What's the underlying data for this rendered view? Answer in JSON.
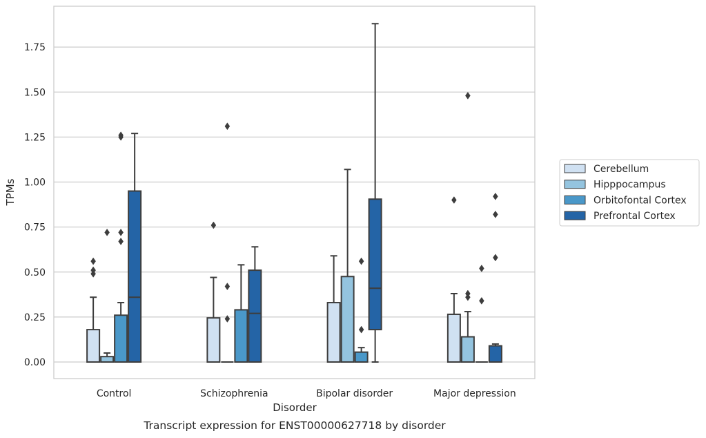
{
  "chart_data": {
    "type": "box",
    "xlabel": "Disorder",
    "ylabel": "TPMs",
    "caption": "Transcript expression for ENST00000627718 by disorder",
    "ylim": [
      -0.09,
      1.97
    ],
    "yticks": [
      "0.00",
      "0.25",
      "0.50",
      "0.75",
      "1.00",
      "1.25",
      "1.50",
      "1.75"
    ],
    "grid": "horizontal",
    "legend_position": "right",
    "categories": [
      "Control",
      "Schizophrenia",
      "Bipolar disorder",
      "Major depression"
    ],
    "series": [
      {
        "name": "Cerebellum",
        "color": "#d0e1f2",
        "boxes": [
          {
            "q1": 0,
            "median": 0,
            "q3": 0.18,
            "whislo": 0,
            "whishi": 0.36,
            "fliers": [
              0.49,
              0.51,
              0.56
            ]
          },
          {
            "q1": 0,
            "median": 0,
            "q3": 0.245,
            "whislo": 0,
            "whishi": 0.47,
            "fliers": [
              0.76
            ]
          },
          {
            "q1": 0,
            "median": 0,
            "q3": 0.33,
            "whislo": 0,
            "whishi": 0.59,
            "fliers": []
          },
          {
            "q1": 0,
            "median": 0,
            "q3": 0.265,
            "whislo": 0,
            "whishi": 0.38,
            "fliers": [
              0.9
            ]
          }
        ]
      },
      {
        "name": "Hipppocampus",
        "color": "#94c4df",
        "boxes": [
          {
            "q1": 0,
            "median": 0,
            "q3": 0.03,
            "whislo": 0,
            "whishi": 0.05,
            "fliers": [
              0.72
            ]
          },
          {
            "q1": 0,
            "median": 0,
            "q3": 0,
            "whislo": 0,
            "whishi": 0,
            "fliers": [
              0.24,
              0.42,
              1.31
            ]
          },
          {
            "q1": 0,
            "median": 0,
            "q3": 0.475,
            "whislo": 0,
            "whishi": 1.07,
            "fliers": []
          },
          {
            "q1": 0,
            "median": 0,
            "q3": 0.14,
            "whislo": 0,
            "whishi": 0.28,
            "fliers": [
              0.36,
              0.38,
              1.48
            ]
          }
        ]
      },
      {
        "name": "Orbitofontal Cortex",
        "color": "#4a98c9",
        "boxes": [
          {
            "q1": 0,
            "median": 0,
            "q3": 0.26,
            "whislo": 0,
            "whishi": 0.33,
            "fliers": [
              0.67,
              0.72,
              1.25,
              1.26
            ]
          },
          {
            "q1": 0,
            "median": 0,
            "q3": 0.29,
            "whislo": 0,
            "whishi": 0.54,
            "fliers": []
          },
          {
            "q1": 0,
            "median": 0,
            "q3": 0.055,
            "whislo": 0,
            "whishi": 0.08,
            "fliers": [
              0.18,
              0.56
            ]
          },
          {
            "q1": 0,
            "median": 0,
            "q3": 0,
            "whislo": 0,
            "whishi": 0,
            "fliers": [
              0.34,
              0.52
            ]
          }
        ]
      },
      {
        "name": "Prefrontal Cortex",
        "color": "#2464a6",
        "boxes": [
          {
            "q1": 0,
            "median": 0.36,
            "q3": 0.95,
            "whislo": 0,
            "whishi": 1.27,
            "fliers": []
          },
          {
            "q1": 0,
            "median": 0.27,
            "q3": 0.51,
            "whislo": 0,
            "whishi": 0.64,
            "fliers": []
          },
          {
            "q1": 0.18,
            "median": 0.41,
            "q3": 0.905,
            "whislo": 0,
            "whishi": 1.88,
            "fliers": []
          },
          {
            "q1": 0,
            "median": 0,
            "q3": 0.09,
            "whislo": 0,
            "whishi": 0.1,
            "fliers": [
              0.58,
              0.82,
              0.92
            ]
          }
        ]
      }
    ]
  }
}
